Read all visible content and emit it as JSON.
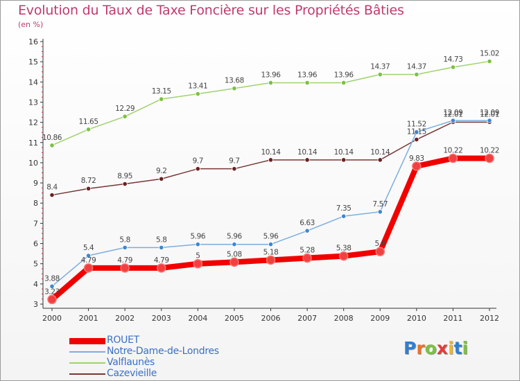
{
  "header": {
    "title": "Evolution du Taux de Taxe Foncière sur les Propriétés Bâties",
    "subtitle": "(en %)"
  },
  "logo": {
    "letters": [
      "P",
      "r",
      "o",
      "x",
      "i",
      "t",
      "i"
    ],
    "colors": [
      "#2f7fd0",
      "#e8732a",
      "#7bc142",
      "#e33b3b",
      "#f2b824",
      "#2f7fd0",
      "#7bc142"
    ]
  },
  "chart_data": {
    "type": "line",
    "title": "Evolution du Taux de Taxe Foncière sur les Propriétés Bâties",
    "ylabel": "(en %)",
    "x": [
      "2000",
      "2001",
      "2002",
      "2003",
      "2004",
      "2005",
      "2006",
      "2007",
      "2008",
      "2009",
      "2010",
      "2011",
      "2012"
    ],
    "ylim": [
      3,
      16
    ],
    "yticks": [
      "3",
      "4",
      "5",
      "6",
      "7",
      "8",
      "9",
      "10",
      "11",
      "12",
      "13",
      "14",
      "15",
      "16"
    ],
    "grid": false,
    "legend_position": "bottom-left",
    "series": [
      {
        "name": "ROUET",
        "color": "#f20000",
        "marker_color": "#f04040",
        "values": [
          3.23,
          4.79,
          4.79,
          4.79,
          5,
          5.08,
          5.18,
          5.28,
          5.38,
          5.6,
          9.83,
          10.22,
          10.22
        ],
        "labels": [
          "3.23",
          "4.79",
          "4.79",
          "4.79",
          "5",
          "5.08",
          "5.18",
          "5.28",
          "5.38",
          "5.6",
          "9.83",
          "10.22",
          "10.22"
        ]
      },
      {
        "name": "Notre-Dame-de-Londres",
        "color": "#7aaee0",
        "marker_color": "#3f86cf",
        "values": [
          3.88,
          5.4,
          5.8,
          5.8,
          5.96,
          5.96,
          5.96,
          6.63,
          7.35,
          7.57,
          11.52,
          12.09,
          12.09
        ],
        "labels": [
          "3.88",
          "5.4",
          "5.8",
          "5.8",
          "5.96",
          "5.96",
          "5.96",
          "6.63",
          "7.35",
          "7.57",
          "11.52",
          "12.09",
          "12.09"
        ]
      },
      {
        "name": "Valflaunès",
        "color": "#9ed36a",
        "marker_color": "#7bc142",
        "values": [
          10.86,
          11.65,
          12.29,
          13.15,
          13.41,
          13.68,
          13.96,
          13.96,
          13.96,
          14.37,
          14.37,
          14.73,
          15.02
        ],
        "labels": [
          "10.86",
          "11.65",
          "12.29",
          "13.15",
          "13.41",
          "13.68",
          "13.96",
          "13.96",
          "13.96",
          "14.37",
          "14.37",
          "14.73",
          "15.02"
        ]
      },
      {
        "name": "Cazevieille",
        "color": "#7a3535",
        "marker_color": "#6a2222",
        "values": [
          8.4,
          8.72,
          8.95,
          9.2,
          9.7,
          9.7,
          10.14,
          10.14,
          10.14,
          10.14,
          11.15,
          12.01,
          12.01
        ],
        "labels": [
          "8.4",
          "8.72",
          "8.95",
          "9.2",
          "9.7",
          "9.7",
          "10.14",
          "10.14",
          "10.14",
          "10.14",
          "11.15",
          "12.01",
          "12.01"
        ]
      }
    ]
  }
}
